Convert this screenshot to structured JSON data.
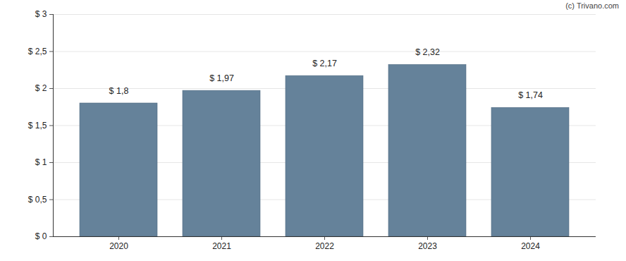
{
  "chart_data": {
    "type": "bar",
    "categories": [
      "2020",
      "2021",
      "2022",
      "2023",
      "2024"
    ],
    "values": [
      1.8,
      1.97,
      2.17,
      2.32,
      1.74
    ],
    "value_labels": [
      "$ 1,8",
      "$ 1,97",
      "$ 2,17",
      "$ 2,32",
      "$ 1,74"
    ],
    "data_labels": true,
    "color": "#65829a",
    "ylim": [
      0,
      3
    ],
    "yticks": [
      {
        "value": 0,
        "label": "$ 0"
      },
      {
        "value": 0.5,
        "label": "$ 0,5"
      },
      {
        "value": 1,
        "label": "$ 1"
      },
      {
        "value": 1.5,
        "label": "$ 1,5"
      },
      {
        "value": 2,
        "label": "$ 2"
      },
      {
        "value": 2.5,
        "label": "$ 2,5"
      },
      {
        "value": 3,
        "label": "$ 3"
      }
    ],
    "grid": true,
    "annotations": [
      "(c) Trivano.com"
    ]
  }
}
